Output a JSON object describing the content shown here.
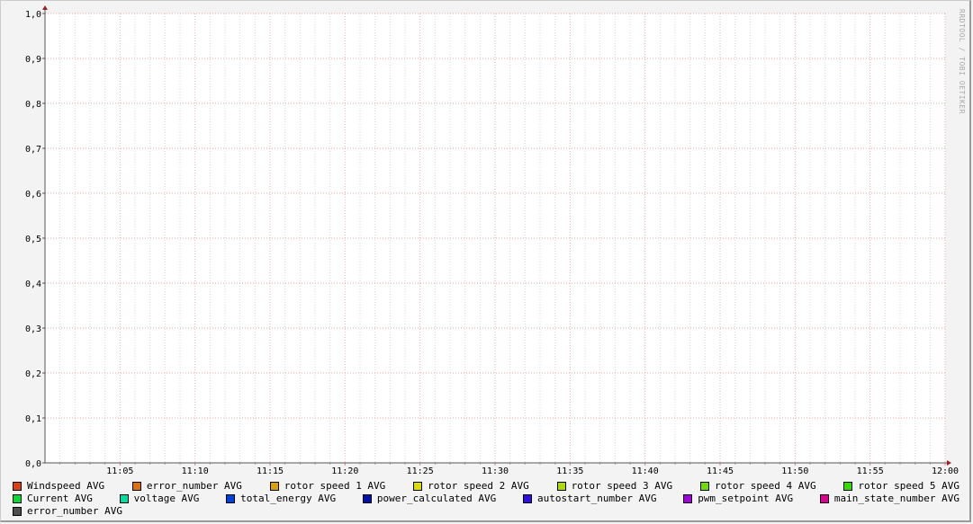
{
  "chart_data": {
    "type": "line",
    "x_ticks": [
      "11:05",
      "11:10",
      "11:15",
      "11:20",
      "11:25",
      "11:30",
      "11:35",
      "11:40",
      "11:45",
      "11:50",
      "11:55",
      "12:00"
    ],
    "x_range": [
      "11:00",
      "12:00"
    ],
    "y_ticks": [
      "0,0",
      "0,1",
      "0,2",
      "0,3",
      "0,4",
      "0,5",
      "0,6",
      "0,7",
      "0,8",
      "0,9",
      "1,0"
    ],
    "ylim": [
      0,
      1
    ],
    "grid": true,
    "legend_placement": "bottom",
    "series": [
      {
        "name": "Windspeed AVG",
        "color": "#e04010",
        "values": []
      },
      {
        "name": "error_number AVG",
        "color": "#dc7010",
        "values": []
      },
      {
        "name": "rotor speed 1 AVG",
        "color": "#dca000",
        "values": []
      },
      {
        "name": "rotor speed 2 AVG",
        "color": "#dcdc00",
        "values": []
      },
      {
        "name": "rotor speed 3 AVG",
        "color": "#a8dc00",
        "values": []
      },
      {
        "name": "rotor speed 4 AVG",
        "color": "#70dc00",
        "values": []
      },
      {
        "name": "rotor speed 5 AVG",
        "color": "#30dc00",
        "values": []
      },
      {
        "name": "Current AVG",
        "color": "#00dc30",
        "values": []
      },
      {
        "name": "voltage AVG",
        "color": "#00dca0",
        "values": []
      },
      {
        "name": "total_energy AVG",
        "color": "#0040dc",
        "values": []
      },
      {
        "name": "power_calculated AVG",
        "color": "#0010a8",
        "values": []
      },
      {
        "name": "autostart_number AVG",
        "color": "#3010dc",
        "values": []
      },
      {
        "name": "pwm_setpoint AVG",
        "color": "#a000dc",
        "values": []
      },
      {
        "name": "main_state_number AVG",
        "color": "#dc0090",
        "values": []
      },
      {
        "name": "error_number AVG",
        "color": "#505050",
        "values": []
      }
    ]
  },
  "watermark": "RRDTOOL / TOBI OETIKER"
}
